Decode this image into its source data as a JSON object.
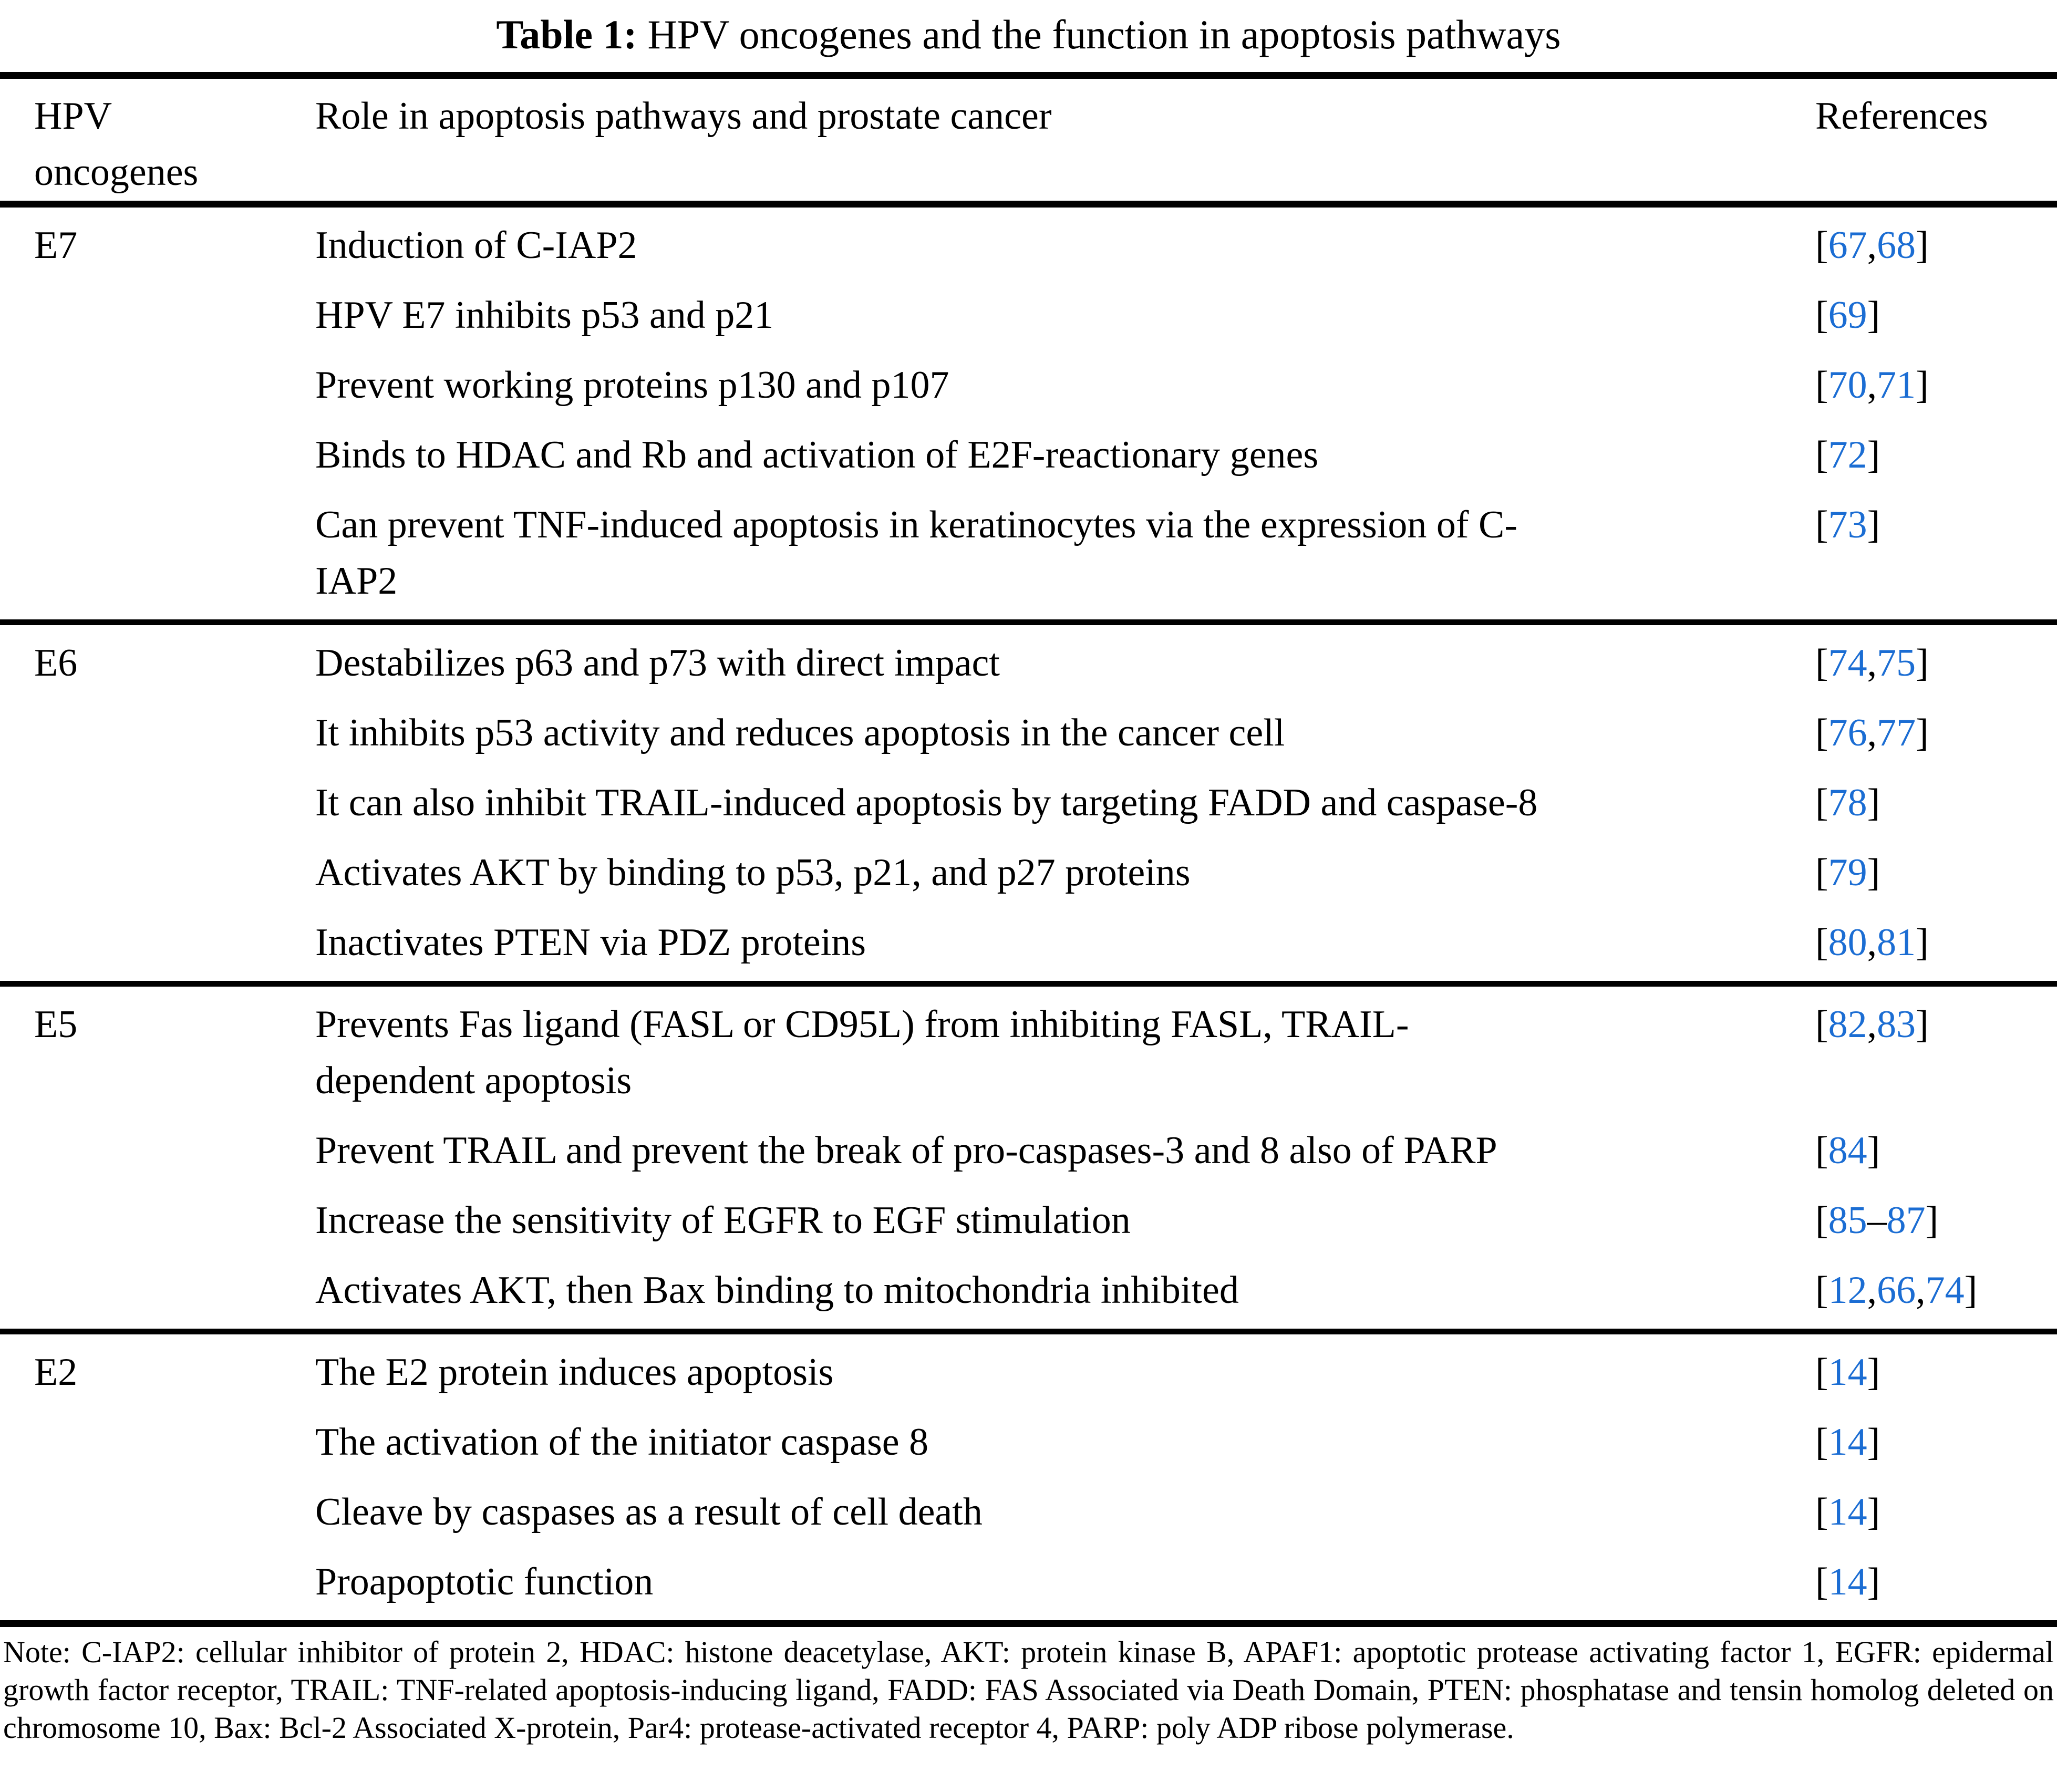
{
  "caption": {
    "label": "Table 1:",
    "text": "HPV oncogenes and the function in apoptosis pathways"
  },
  "table": {
    "header": {
      "col1": "HPV\noncogenes",
      "col2": "Role in apoptosis pathways and prostate cancer",
      "col3": "References"
    },
    "sections": [
      {
        "oncogene": "E7",
        "rows": [
          {
            "role": "Induction of C-IAP2",
            "refs": [
              "67",
              "68"
            ],
            "sep": ","
          },
          {
            "role": "HPV E7 inhibits p53 and p21",
            "refs": [
              "69"
            ],
            "sep": ","
          },
          {
            "role": "Prevent working proteins p130 and p107",
            "refs": [
              "70",
              "71"
            ],
            "sep": ","
          },
          {
            "role": "Binds to HDAC and Rb and activation of E2F-reactionary genes",
            "refs": [
              "72"
            ],
            "sep": ","
          },
          {
            "role": "Can prevent TNF-induced apoptosis in keratinocytes via the expression of C-\nIAP2",
            "refs": [
              "73"
            ],
            "sep": ","
          }
        ]
      },
      {
        "oncogene": "E6",
        "rows": [
          {
            "role": "Destabilizes p63 and p73 with direct impact",
            "refs": [
              "74",
              "75"
            ],
            "sep": ","
          },
          {
            "role": "It inhibits p53 activity and reduces apoptosis in the cancer cell",
            "refs": [
              "76",
              "77"
            ],
            "sep": ","
          },
          {
            "role": "It can also inhibit TRAIL-induced apoptosis by targeting FADD and caspase-8",
            "refs": [
              "78"
            ],
            "sep": ","
          },
          {
            "role": "Activates AKT by binding to p53, p21, and p27 proteins",
            "refs": [
              "79"
            ],
            "sep": ","
          },
          {
            "role": "Inactivates PTEN via PDZ proteins",
            "refs": [
              "80",
              "81"
            ],
            "sep": ","
          }
        ]
      },
      {
        "oncogene": "E5",
        "rows": [
          {
            "role": "Prevents Fas ligand (FASL or CD95L) from inhibiting FASL, TRAIL-\ndependent apoptosis",
            "refs": [
              "82",
              "83"
            ],
            "sep": ","
          },
          {
            "role": "Prevent TRAIL and prevent the break of pro-caspases-3 and 8 also of PARP",
            "refs": [
              "84"
            ],
            "sep": ","
          },
          {
            "role": "Increase the sensitivity of EGFR to EGF stimulation",
            "refs": [
              "85",
              "87"
            ],
            "sep": "–"
          },
          {
            "role": "Activates AKT, then Bax binding to mitochondria inhibited",
            "refs": [
              "12",
              "66",
              "74"
            ],
            "sep": ","
          }
        ]
      },
      {
        "oncogene": "E2",
        "rows": [
          {
            "role": "The E2 protein induces apoptosis",
            "refs": [
              "14"
            ],
            "sep": ","
          },
          {
            "role": "The activation of the initiator caspase 8",
            "refs": [
              "14"
            ],
            "sep": ","
          },
          {
            "role": "Cleave by caspases as a result of cell death",
            "refs": [
              "14"
            ],
            "sep": ","
          },
          {
            "role": "Proapoptotic function",
            "refs": [
              "14"
            ],
            "sep": ","
          }
        ]
      }
    ]
  },
  "note": "Note: C-IAP2: cellular inhibitor of protein 2, HDAC: histone deacetylase, AKT: protein kinase B, APAF1: apoptotic protease activating factor 1, EGFR: epidermal growth factor receptor, TRAIL: TNF-related apoptosis-inducing ligand, FADD: FAS Associated via Death Domain, PTEN: phosphatase and tensin homolog deleted on chromosome 10, Bax: Bcl-2 Associated X-protein, Par4: protease-activated receptor 4, PARP: poly ADP ribose polymerase.",
  "colors": {
    "link_blue": "#1B6DD3",
    "text": "#000000",
    "background": "#ffffff"
  }
}
